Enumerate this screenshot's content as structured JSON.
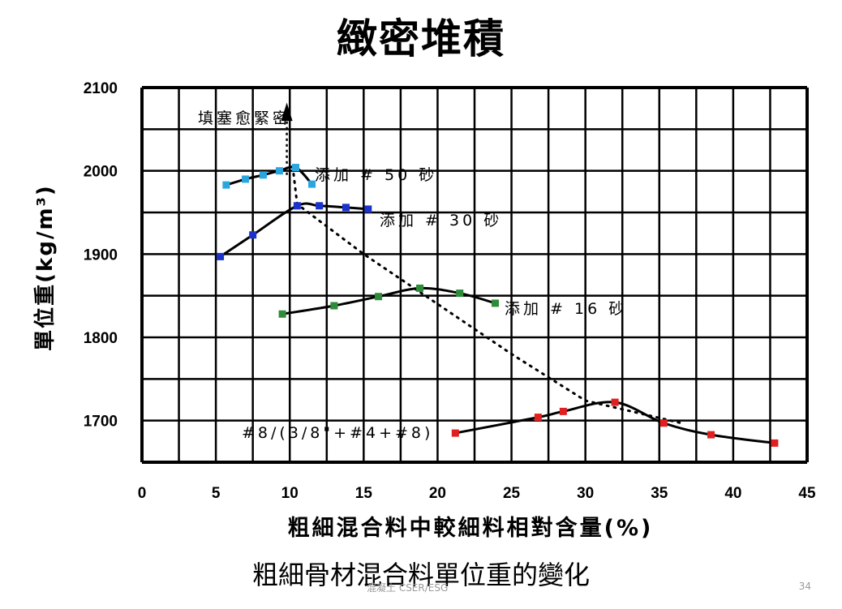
{
  "slide": {
    "title": "緻密堆積",
    "caption": "粗細骨材混合料單位重的變化",
    "footer": "混凝土 CSER/ESG",
    "page_number": "34"
  },
  "colors": {
    "grid": "#000000",
    "curve": "#000000",
    "series_50": "#2aa6df",
    "series_30": "#1a33c9",
    "series_16": "#2e8b3a",
    "series_mix": "#e02020"
  },
  "chart_data": {
    "type": "line",
    "xlabel": "粗細混合料中較細料相對含量(%)",
    "ylabel": "單位重(kg/m³)",
    "xlim": [
      0,
      45
    ],
    "ylim": [
      1650,
      2100
    ],
    "x_ticks": [
      "0",
      "5",
      "10",
      "15",
      "20",
      "25",
      "30",
      "35",
      "40",
      "45"
    ],
    "y_ticks": [
      "2100",
      "2000",
      "1900",
      "1800",
      "1700"
    ],
    "grid": true,
    "series": [
      {
        "name": "添加 # 50 砂",
        "color_key": "series_50",
        "points": [
          [
            5.7,
            1983
          ],
          [
            7,
            1990
          ],
          [
            8.2,
            1995
          ],
          [
            9.3,
            2000
          ],
          [
            10.4,
            2004
          ],
          [
            11.5,
            1984
          ]
        ]
      },
      {
        "name": "添加 # 30 砂",
        "color_key": "series_30",
        "points": [
          [
            5.3,
            1897
          ],
          [
            7.5,
            1923
          ],
          [
            10.5,
            1958
          ],
          [
            12,
            1958
          ],
          [
            13.8,
            1956
          ],
          [
            15.3,
            1954
          ]
        ]
      },
      {
        "name": "添加 # 16 砂",
        "color_key": "series_16",
        "points": [
          [
            9.5,
            1828
          ],
          [
            13,
            1838
          ],
          [
            16,
            1849
          ],
          [
            18.8,
            1859
          ],
          [
            21.5,
            1853
          ],
          [
            23.9,
            1841
          ]
        ]
      },
      {
        "name": "#8/(3/8\"+#4+#8)",
        "color_key": "series_mix",
        "points": [
          [
            21.2,
            1685
          ],
          [
            26.8,
            1704
          ],
          [
            28.5,
            1711
          ],
          [
            32,
            1722
          ],
          [
            35.3,
            1697
          ],
          [
            38.5,
            1683
          ],
          [
            42.8,
            1673
          ]
        ]
      }
    ],
    "arrow_label": "填塞愈緊密"
  }
}
